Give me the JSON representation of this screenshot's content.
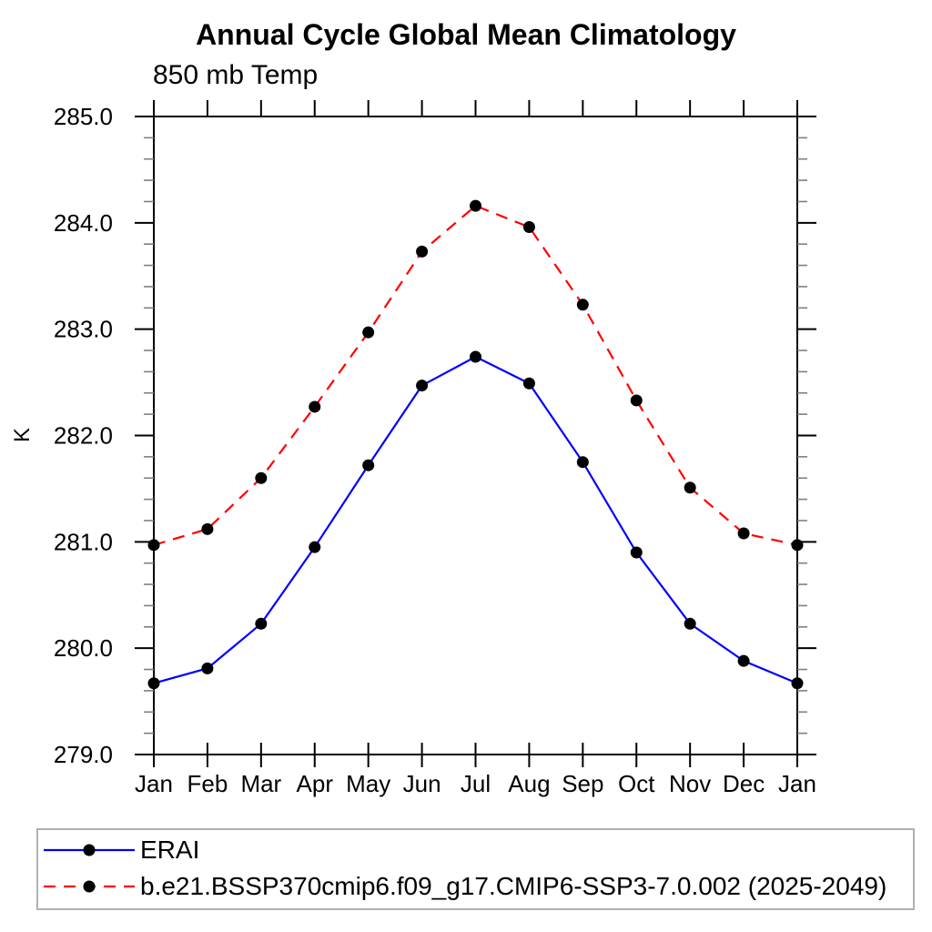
{
  "chart_data": {
    "type": "line",
    "title": "Annual Cycle Global Mean Climatology",
    "subtitle": "850 mb Temp",
    "ylabel": "K",
    "x_categories": [
      "Jan",
      "Feb",
      "Mar",
      "Apr",
      "May",
      "Jun",
      "Jul",
      "Aug",
      "Sep",
      "Oct",
      "Nov",
      "Dec",
      "Jan"
    ],
    "ylim": [
      279.0,
      285.0
    ],
    "y_major_step": 1.0,
    "y_minor_step": 0.2,
    "y_tick_format_decimals": 1,
    "grid": false,
    "legend_position": "bottom",
    "series": [
      {
        "name": "ERAI",
        "color": "#0000ff",
        "line_style": "solid",
        "marker": "circle",
        "marker_color": "#000000",
        "values": [
          279.67,
          279.81,
          280.23,
          280.95,
          281.72,
          282.47,
          282.74,
          282.49,
          281.75,
          280.9,
          280.23,
          279.88,
          279.67
        ]
      },
      {
        "name": "b.e21.BSSP370cmip6.f09_g17.CMIP6-SSP3-7.0.002 (2025-2049)",
        "color": "#ff0000",
        "line_style": "dashed",
        "marker": "circle",
        "marker_color": "#000000",
        "values": [
          280.97,
          281.12,
          281.6,
          282.27,
          282.97,
          283.73,
          284.16,
          283.96,
          283.23,
          282.33,
          281.51,
          281.08,
          280.97
        ]
      }
    ]
  },
  "style_colors": {
    "axis": "#000000",
    "minor_tick": "#808080",
    "legend_border": "#b0b0b0",
    "text": "#000000"
  }
}
